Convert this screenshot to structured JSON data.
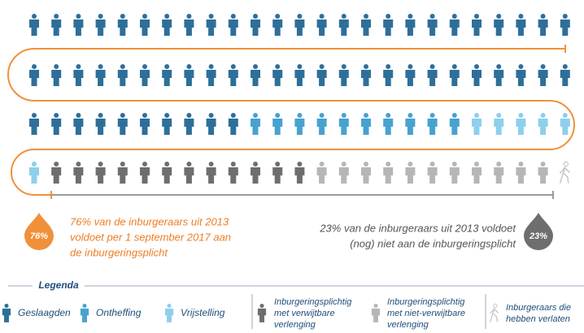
{
  "pictogram": {
    "icons": [
      {
        "legend": 0,
        "count": 60,
        "color": "#2e6f99"
      },
      {
        "legend": 1,
        "count": 10,
        "color": "#47a2cf"
      },
      {
        "legend": 2,
        "count": 6,
        "color": "#8ecfec"
      },
      {
        "legend": 3,
        "count": 12,
        "color": "#6e6e6e"
      },
      {
        "legend": 4,
        "count": 11,
        "color": "#b6b6b6"
      },
      {
        "legend": 5,
        "count": 1,
        "color": "#c8c8c8"
      }
    ],
    "left": {
      "value": "76%",
      "lines": [
        "76% van de inburgeraars uit 2013",
        "voldoet per 1 september 2017 aan",
        "de inburgeringsplicht"
      ]
    },
    "right": {
      "value": "23%",
      "lines": [
        "23% van de inburgeraars uit 2013 voldoet",
        "(nog) niet aan de inburgeringsplicht"
      ]
    },
    "legend_title": "Legenda",
    "legend": [
      {
        "lines": [
          "Geslaagden"
        ]
      },
      {
        "lines": [
          "Ontheffing"
        ]
      },
      {
        "lines": [
          "Vrijstelling"
        ]
      },
      {
        "lines": [
          "Inburgeringsplichtig",
          "met verwijtbare",
          "verlenging"
        ]
      },
      {
        "lines": [
          "Inburgeringsplichtig",
          "met niet-verwijtbare",
          "verlenging"
        ]
      },
      {
        "lines": [
          "Inburgeraars die",
          "hebben verlaten"
        ]
      }
    ]
  }
}
